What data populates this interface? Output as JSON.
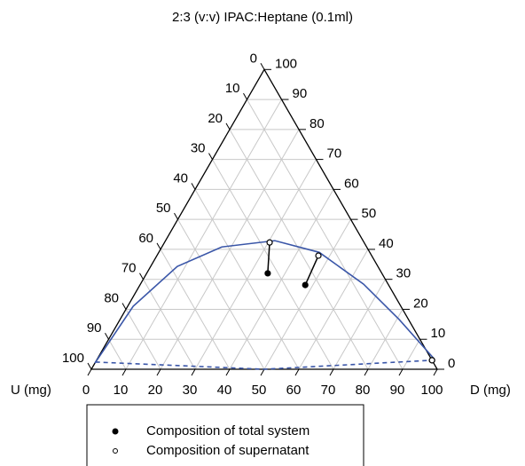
{
  "chart_data": {
    "type": "ternary",
    "title": "2:3 (v:v) IPAC:Heptane (0.1ml)",
    "left_axis_label": "U (mg)",
    "right_axis_label": "D (mg)",
    "dticks": [
      0,
      10,
      20,
      30,
      40,
      50,
      60,
      70,
      80,
      90,
      100
    ],
    "tticks": [
      0,
      10,
      20,
      30,
      40,
      50,
      60,
      70,
      80,
      90,
      100
    ],
    "uticks": [
      0,
      10,
      20,
      30,
      40,
      50,
      60,
      70,
      80,
      90,
      100
    ],
    "grid": true,
    "curve": {
      "color": "#3a56a8",
      "d": [
        0,
        1.6,
        7.7,
        17.3,
        31.6,
        46.4,
        64.5,
        80.7,
        97.6
      ],
      "t": [
        2,
        21,
        34.3,
        40.8,
        42.9,
        39,
        28.4,
        16.6,
        3.3
      ]
    },
    "lower_curve": {
      "color": "#3a56a8",
      "d": [
        0,
        50,
        97
      ],
      "t": [
        2.4,
        0,
        3
      ]
    },
    "series": [
      {
        "name": "Composition of total system",
        "marker": "filled",
        "d": [
          35,
          47.8,
          97
        ],
        "t": [
          32,
          28.1,
          3
        ]
      },
      {
        "name": "Composition of supernatant",
        "marker": "open",
        "d": [
          30.4,
          46.7,
          97
        ],
        "t": [
          42.3,
          37.9,
          3
        ]
      }
    ]
  }
}
